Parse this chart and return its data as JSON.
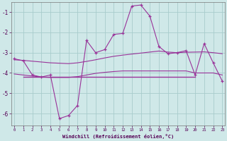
{
  "xlabel": "Windchill (Refroidissement éolien,°C)",
  "background_color": "#cfe8e8",
  "grid_color": "#a8cccc",
  "line_color": "#993399",
  "x_ticks": [
    0,
    1,
    2,
    3,
    4,
    5,
    6,
    7,
    8,
    9,
    10,
    11,
    12,
    13,
    14,
    15,
    16,
    17,
    18,
    19,
    20,
    21,
    22,
    23
  ],
  "ylim": [
    -6.6,
    -0.5
  ],
  "yticks": [
    -6,
    -5,
    -4,
    -3,
    -2,
    -1
  ],
  "line1_x": [
    0,
    1,
    2,
    3,
    4,
    5,
    6,
    7,
    8,
    9,
    10,
    11,
    12,
    13,
    14,
    15,
    16,
    17,
    18,
    19,
    20,
    21,
    22,
    23
  ],
  "line1_y": [
    -3.3,
    -3.4,
    -4.1,
    -4.2,
    -4.1,
    -6.25,
    -6.1,
    -5.6,
    -2.4,
    -3.0,
    -2.85,
    -2.1,
    -2.05,
    -0.7,
    -0.65,
    -1.2,
    -2.7,
    -3.05,
    -3.0,
    -2.9,
    -4.1,
    -2.55,
    -3.5,
    -4.4
  ],
  "line2_x": [
    0,
    1,
    2,
    3,
    4,
    5,
    6,
    7,
    8,
    9,
    10,
    11,
    12,
    13,
    14,
    15,
    16,
    17,
    18,
    19,
    20,
    21,
    22,
    23
  ],
  "line2_y": [
    -3.35,
    -3.38,
    -3.42,
    -3.46,
    -3.5,
    -3.52,
    -3.54,
    -3.5,
    -3.43,
    -3.35,
    -3.26,
    -3.18,
    -3.12,
    -3.07,
    -3.02,
    -2.97,
    -2.92,
    -2.97,
    -3.0,
    -2.98,
    -2.97,
    -2.96,
    -3.0,
    -3.05
  ],
  "line3_x": [
    0,
    1,
    2,
    3,
    4,
    5,
    6,
    7,
    8,
    9,
    10,
    11,
    12,
    13,
    14,
    15,
    16,
    17,
    18,
    19,
    20,
    21,
    22,
    23
  ],
  "line3_y": [
    -4.05,
    -4.1,
    -4.15,
    -4.2,
    -4.22,
    -4.22,
    -4.22,
    -4.18,
    -4.1,
    -4.02,
    -3.97,
    -3.93,
    -3.9,
    -3.9,
    -3.9,
    -3.9,
    -3.9,
    -3.9,
    -3.9,
    -3.9,
    -4.0,
    -4.0,
    -4.0,
    -4.1
  ],
  "line4_x": [
    1,
    20
  ],
  "line4_y": [
    -4.2,
    -4.2
  ]
}
